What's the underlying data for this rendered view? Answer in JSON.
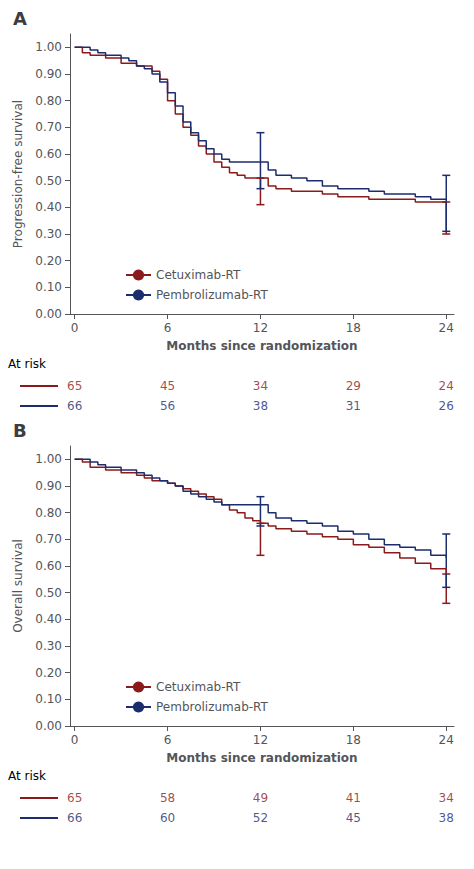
{
  "chart_data": [
    {
      "type": "line",
      "title": "A",
      "xlabel": "Months since randomization",
      "ylabel": "Progression-free survival",
      "x": [
        0,
        0.5,
        1,
        1.5,
        2,
        2.5,
        3,
        3.5,
        4,
        4.5,
        5,
        5.5,
        6,
        6.5,
        7,
        7.5,
        8,
        8.5,
        9,
        9.5,
        10,
        10.5,
        11,
        11.5,
        12,
        12.5,
        13,
        14,
        15,
        16,
        17,
        18,
        19,
        20,
        21,
        22,
        23,
        24
      ],
      "xlim": [
        -0.3,
        24.5
      ],
      "xticks": [
        0,
        6,
        12,
        18,
        24
      ],
      "ylim": [
        0,
        1.05
      ],
      "yticks": [
        {
          "value": 0,
          "label": "0.00"
        },
        {
          "value": 0.1,
          "label": "0.10"
        },
        {
          "value": 0.2,
          "label": "0.20"
        },
        {
          "value": 0.3,
          "label": "0.30"
        },
        {
          "value": 0.4,
          "label": "0.40"
        },
        {
          "value": 0.5,
          "label": "0.50"
        },
        {
          "value": 0.6,
          "label": "0.60"
        },
        {
          "value": 0.7,
          "label": "0.70"
        },
        {
          "value": 0.8,
          "label": "0.80"
        },
        {
          "value": 0.9,
          "label": "0.90"
        },
        {
          "value": 1,
          "label": "1.00"
        }
      ],
      "grid": false,
      "legend": "lower left",
      "ci_x": [
        12,
        24
      ],
      "at_risk_label": "At risk",
      "at_risk_times": [
        0,
        6,
        12,
        18,
        24
      ],
      "series": [
        {
          "name": "Cetuximab-RT",
          "color": "#8B1A1A",
          "values": [
            1.0,
            0.98,
            0.97,
            0.97,
            0.96,
            0.96,
            0.94,
            0.94,
            0.93,
            0.93,
            0.91,
            0.88,
            0.8,
            0.75,
            0.7,
            0.67,
            0.63,
            0.6,
            0.57,
            0.55,
            0.53,
            0.52,
            0.51,
            0.51,
            0.51,
            0.48,
            0.47,
            0.46,
            0.46,
            0.45,
            0.44,
            0.44,
            0.43,
            0.43,
            0.43,
            0.42,
            0.42,
            0.42
          ],
          "ci": [
            [
              0.41,
              0.51
            ],
            [
              0.3,
              0.42
            ]
          ],
          "at_risk": [
            65,
            45,
            34,
            29,
            24
          ]
        },
        {
          "name": "Pembrolizumab-RT",
          "color": "#1C2D6E",
          "values": [
            1.0,
            1.0,
            0.99,
            0.98,
            0.97,
            0.97,
            0.96,
            0.95,
            0.93,
            0.92,
            0.9,
            0.87,
            0.83,
            0.78,
            0.72,
            0.68,
            0.65,
            0.62,
            0.6,
            0.58,
            0.57,
            0.57,
            0.57,
            0.57,
            0.57,
            0.54,
            0.52,
            0.51,
            0.5,
            0.48,
            0.47,
            0.47,
            0.46,
            0.45,
            0.45,
            0.44,
            0.43,
            0.43
          ],
          "ci": [
            [
              0.47,
              0.68
            ],
            [
              0.31,
              0.52
            ]
          ],
          "at_risk": [
            66,
            56,
            38,
            31,
            26
          ]
        }
      ]
    },
    {
      "type": "line",
      "title": "B",
      "xlabel": "Months since randomization",
      "ylabel": "Overall survival",
      "x": [
        0,
        0.5,
        1,
        1.5,
        2,
        2.5,
        3,
        3.5,
        4,
        4.5,
        5,
        5.5,
        6,
        6.5,
        7,
        7.5,
        8,
        8.5,
        9,
        9.5,
        10,
        10.5,
        11,
        11.5,
        12,
        12.5,
        13,
        14,
        15,
        16,
        17,
        18,
        19,
        20,
        21,
        22,
        23,
        24
      ],
      "xlim": [
        -0.3,
        24.5
      ],
      "xticks": [
        0,
        6,
        12,
        18,
        24
      ],
      "ylim": [
        0,
        1.05
      ],
      "yticks": [
        {
          "value": 0,
          "label": "0.00"
        },
        {
          "value": 0.1,
          "label": "0.10"
        },
        {
          "value": 0.2,
          "label": "0.20"
        },
        {
          "value": 0.3,
          "label": "0.30"
        },
        {
          "value": 0.4,
          "label": "0.40"
        },
        {
          "value": 0.5,
          "label": "0.50"
        },
        {
          "value": 0.6,
          "label": "0.60"
        },
        {
          "value": 0.7,
          "label": "0.70"
        },
        {
          "value": 0.8,
          "label": "0.80"
        },
        {
          "value": 0.9,
          "label": "0.90"
        },
        {
          "value": 1,
          "label": "1.00"
        }
      ],
      "grid": false,
      "legend": "lower left",
      "ci_x": [
        12,
        24
      ],
      "at_risk_label": "At risk",
      "at_risk_times": [
        0,
        6,
        12,
        18,
        24
      ],
      "series": [
        {
          "name": "Cetuximab-RT",
          "color": "#8B1A1A",
          "values": [
            1.0,
            0.99,
            0.97,
            0.97,
            0.96,
            0.96,
            0.95,
            0.95,
            0.94,
            0.93,
            0.92,
            0.92,
            0.91,
            0.9,
            0.89,
            0.88,
            0.87,
            0.86,
            0.85,
            0.83,
            0.81,
            0.8,
            0.78,
            0.77,
            0.76,
            0.75,
            0.74,
            0.73,
            0.72,
            0.71,
            0.7,
            0.68,
            0.67,
            0.65,
            0.63,
            0.61,
            0.59,
            0.57
          ],
          "ci": [
            [
              0.64,
              0.76
            ],
            [
              0.46,
              0.57
            ]
          ],
          "at_risk": [
            65,
            58,
            49,
            41,
            34
          ]
        },
        {
          "name": "Pembrolizumab-RT",
          "color": "#1C2D6E",
          "values": [
            1.0,
            1.0,
            0.99,
            0.98,
            0.97,
            0.97,
            0.96,
            0.96,
            0.95,
            0.94,
            0.93,
            0.92,
            0.91,
            0.9,
            0.88,
            0.87,
            0.86,
            0.85,
            0.84,
            0.83,
            0.83,
            0.83,
            0.83,
            0.83,
            0.83,
            0.8,
            0.78,
            0.77,
            0.76,
            0.75,
            0.73,
            0.72,
            0.7,
            0.68,
            0.67,
            0.66,
            0.64,
            0.63
          ],
          "ci": [
            [
              0.75,
              0.86
            ],
            [
              0.52,
              0.72
            ]
          ],
          "at_risk": [
            66,
            60,
            52,
            45,
            38
          ]
        }
      ]
    }
  ]
}
